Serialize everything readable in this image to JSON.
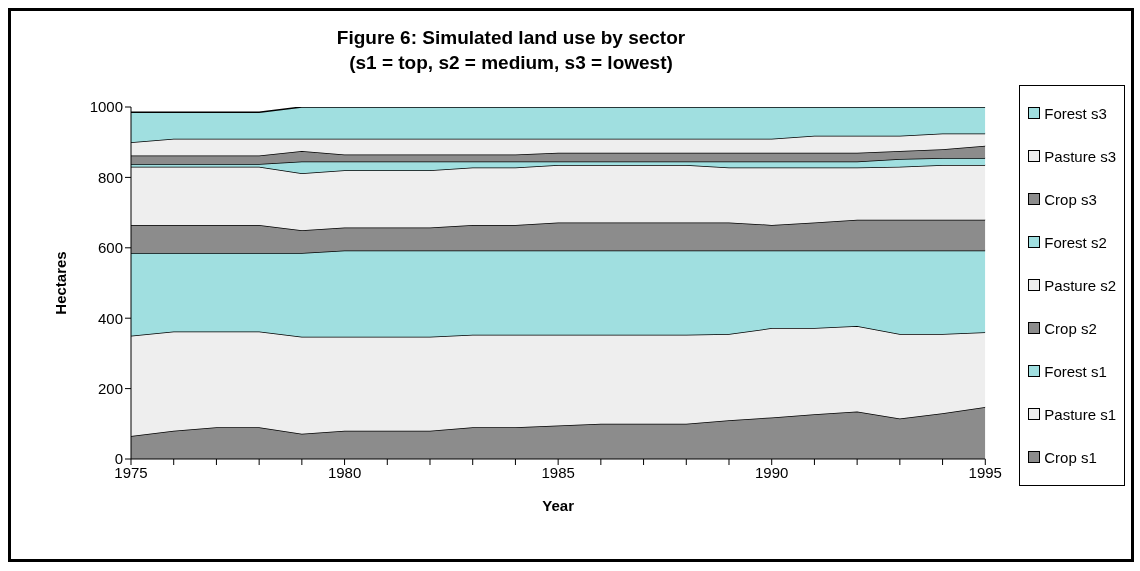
{
  "chart_data": {
    "type": "area",
    "stacked": true,
    "title": "Figure 6: Simulated land use by sector\n(s1 = top, s2 = medium, s3 = lowest)",
    "xlabel": "Year",
    "ylabel": "Hectares",
    "x": [
      1975,
      1976,
      1977,
      1978,
      1979,
      1980,
      1981,
      1982,
      1983,
      1984,
      1985,
      1986,
      1987,
      1988,
      1989,
      1990,
      1991,
      1992,
      1993,
      1994,
      1995
    ],
    "xlim": [
      1975,
      1995
    ],
    "xticks": [
      1975,
      {
        "value": 1976,
        "label": null
      },
      {
        "value": 1977,
        "label": null
      },
      {
        "value": 1978,
        "label": null
      },
      {
        "value": 1979,
        "label": null
      },
      1980,
      {
        "value": 1981,
        "label": null
      },
      {
        "value": 1982,
        "label": null
      },
      {
        "value": 1983,
        "label": null
      },
      {
        "value": 1984,
        "label": null
      },
      1985,
      {
        "value": 1986,
        "label": null
      },
      {
        "value": 1987,
        "label": null
      },
      {
        "value": 1988,
        "label": null
      },
      {
        "value": 1989,
        "label": null
      },
      1990,
      {
        "value": 1991,
        "label": null
      },
      {
        "value": 1992,
        "label": null
      },
      {
        "value": 1993,
        "label": null
      },
      {
        "value": 1994,
        "label": null
      },
      1995
    ],
    "ylim": [
      0,
      1000
    ],
    "yticks": [
      0,
      200,
      400,
      600,
      800,
      1000
    ],
    "grid": false,
    "legend": "right",
    "series": [
      {
        "name": "Crop s1",
        "color": "#8c8c8c",
        "values": [
          65,
          80,
          90,
          90,
          72,
          80,
          80,
          80,
          90,
          90,
          95,
          100,
          100,
          100,
          110,
          118,
          127,
          135,
          115,
          130,
          148
        ]
      },
      {
        "name": "Pasture s1",
        "color": "#eeeeee",
        "values": [
          285,
          282,
          272,
          272,
          275,
          267,
          267,
          267,
          263,
          263,
          258,
          253,
          253,
          253,
          245,
          254,
          245,
          243,
          240,
          225,
          212
        ]
      },
      {
        "name": "Forest s1",
        "color": "#a0dfe0",
        "values": [
          235,
          223,
          223,
          223,
          238,
          245,
          245,
          245,
          239,
          239,
          239,
          239,
          239,
          239,
          237,
          220,
          220,
          214,
          237,
          237,
          232
        ]
      },
      {
        "name": "Crop s2",
        "color": "#8c8c8c",
        "values": [
          80,
          80,
          80,
          80,
          65,
          66,
          66,
          66,
          73,
          73,
          80,
          80,
          80,
          80,
          80,
          73,
          80,
          88,
          88,
          88,
          88
        ]
      },
      {
        "name": "Pasture s2",
        "color": "#eeeeee",
        "values": [
          165,
          165,
          165,
          165,
          162,
          162,
          162,
          162,
          163,
          163,
          163,
          163,
          163,
          163,
          156,
          163,
          156,
          148,
          150,
          155,
          155
        ]
      },
      {
        "name": "Forest s2",
        "color": "#a0dfe0",
        "values": [
          8,
          8,
          8,
          8,
          33,
          25,
          25,
          25,
          17,
          17,
          10,
          10,
          10,
          10,
          17,
          17,
          17,
          17,
          22,
          20,
          20
        ]
      },
      {
        "name": "Crop s3",
        "color": "#8c8c8c",
        "values": [
          24,
          24,
          24,
          24,
          30,
          20,
          20,
          20,
          20,
          20,
          25,
          25,
          25,
          25,
          25,
          25,
          25,
          25,
          23,
          25,
          35
        ]
      },
      {
        "name": "Pasture s3",
        "color": "#eeeeee",
        "values": [
          38,
          48,
          48,
          48,
          35,
          45,
          45,
          45,
          45,
          45,
          40,
          40,
          40,
          40,
          40,
          40,
          48,
          48,
          43,
          45,
          35
        ]
      },
      {
        "name": "Forest s3",
        "color": "#a0dfe0",
        "values": [
          85,
          75,
          75,
          75,
          90,
          90,
          90,
          90,
          90,
          90,
          90,
          90,
          90,
          90,
          90,
          90,
          82,
          82,
          82,
          75,
          75
        ]
      }
    ]
  }
}
